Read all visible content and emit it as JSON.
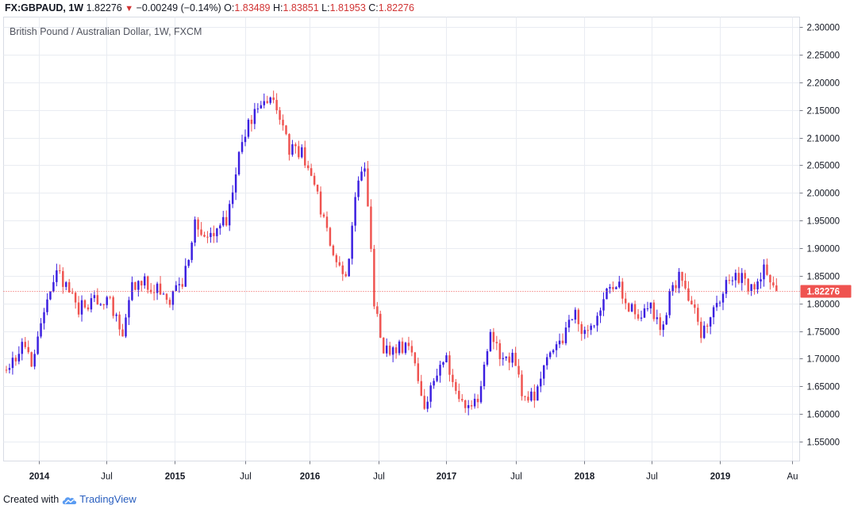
{
  "header": {
    "symbol": "FX:GBPAUD, 1W",
    "last": "1.82276",
    "change_arrow": "▼",
    "change": "−0.00249 (−0.14%)",
    "o_label": "O:",
    "o_value": "1.83489",
    "h_label": "H:",
    "h_value": "1.83851",
    "l_label": "L:",
    "l_value": "1.81953",
    "c_label": "C:",
    "c_value": "1.82276"
  },
  "footer": {
    "created_with": "Created with",
    "brand": "TradingView",
    "logo_icon": "tradingview-cloud-icon"
  },
  "chart_data": {
    "type": "candlestick",
    "title": "British Pound / Australian Dollar, 1W, FXCM",
    "interval": "1W",
    "ylim": [
      1.515,
      2.318
    ],
    "y_ticks": [
      "1.55000",
      "1.60000",
      "1.65000",
      "1.70000",
      "1.75000",
      "1.80000",
      "1.85000",
      "1.90000",
      "1.95000",
      "2.00000",
      "2.05000",
      "2.10000",
      "2.15000",
      "2.20000",
      "2.25000",
      "2.30000"
    ],
    "x_ticks": [
      "2014",
      "Jul",
      "2015",
      "Jul",
      "2016",
      "Jul",
      "2017",
      "Jul",
      "2018",
      "Jul",
      "2019",
      "Au"
    ],
    "x_tick_weeks": [
      10.4,
      31.8,
      53.6,
      75.9,
      96.4,
      118.4,
      140.0,
      162.0,
      183.7,
      205.3,
      227.1,
      250.0
    ],
    "total_weeks": 253,
    "last_price": 1.82276,
    "last_price_label": "1.82276",
    "grid": true,
    "colors": {
      "up": "#3b1fe0",
      "down": "#ef5350",
      "grid": "#e9ecf2",
      "price_line": "#ef5350",
      "axis": "#787b86"
    },
    "anchors": [
      [
        0,
        1.68
      ],
      [
        5,
        1.72
      ],
      [
        8,
        1.69
      ],
      [
        12,
        1.775
      ],
      [
        16,
        1.86
      ],
      [
        19,
        1.83
      ],
      [
        23,
        1.79
      ],
      [
        28,
        1.81
      ],
      [
        33,
        1.8
      ],
      [
        37,
        1.735
      ],
      [
        40,
        1.835
      ],
      [
        44,
        1.84
      ],
      [
        47,
        1.83
      ],
      [
        52,
        1.81
      ],
      [
        56,
        1.84
      ],
      [
        60,
        1.94
      ],
      [
        64,
        1.92
      ],
      [
        70,
        1.95
      ],
      [
        75,
        2.1
      ],
      [
        81,
        2.16
      ],
      [
        85,
        2.16
      ],
      [
        90,
        2.08
      ],
      [
        94,
        2.07
      ],
      [
        98,
        2.01
      ],
      [
        104,
        1.89
      ],
      [
        108,
        1.84
      ],
      [
        111,
        2.0
      ],
      [
        114,
        2.04
      ],
      [
        116,
        1.9
      ],
      [
        117,
        1.8
      ],
      [
        120,
        1.72
      ],
      [
        124,
        1.72
      ],
      [
        129,
        1.72
      ],
      [
        133,
        1.62
      ],
      [
        137,
        1.68
      ],
      [
        140,
        1.71
      ],
      [
        143,
        1.63
      ],
      [
        147,
        1.615
      ],
      [
        150,
        1.62
      ],
      [
        154,
        1.74
      ],
      [
        158,
        1.7
      ],
      [
        161,
        1.7
      ],
      [
        164,
        1.64
      ],
      [
        168,
        1.63
      ],
      [
        171,
        1.7
      ],
      [
        174,
        1.715
      ],
      [
        177,
        1.74
      ],
      [
        181,
        1.79
      ],
      [
        184,
        1.74
      ],
      [
        187,
        1.77
      ],
      [
        190,
        1.81
      ],
      [
        194,
        1.84
      ],
      [
        197,
        1.8
      ],
      [
        201,
        1.78
      ],
      [
        205,
        1.79
      ],
      [
        208,
        1.75
      ],
      [
        211,
        1.81
      ],
      [
        214,
        1.85
      ],
      [
        218,
        1.8
      ],
      [
        221,
        1.745
      ],
      [
        225,
        1.795
      ],
      [
        229,
        1.83
      ],
      [
        232,
        1.85
      ],
      [
        235,
        1.84
      ],
      [
        238,
        1.825
      ],
      [
        241,
        1.86
      ],
      [
        244,
        1.835
      ],
      [
        245,
        1.82276
      ]
    ]
  }
}
